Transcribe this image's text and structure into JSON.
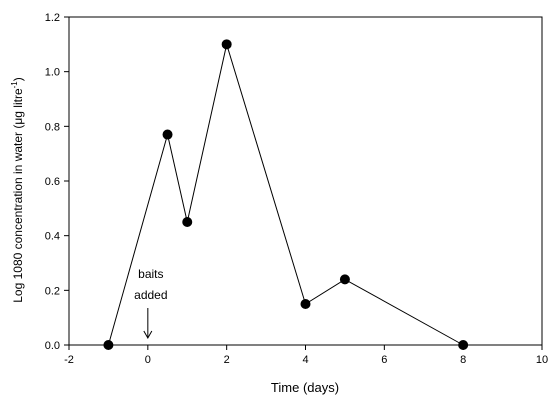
{
  "chart_data": {
    "type": "line",
    "xlabel": "Time (days)",
    "ylabel_main": "Log 1080 concentration in water (",
    "ylabel_mu": "μ",
    "ylabel_unit": "g litre",
    "ylabel_sup": "-1",
    "ylabel_close": ")",
    "xlim": [
      -2,
      10
    ],
    "ylim": [
      0,
      1.2
    ],
    "xticks": [
      -2,
      0,
      2,
      4,
      6,
      8,
      10
    ],
    "xtick_labels": [
      "-2",
      "0",
      "2",
      "4",
      "6",
      "8",
      "10"
    ],
    "yticks": [
      0,
      0.2,
      0.4,
      0.6,
      0.8,
      1.0,
      1.2
    ],
    "ytick_labels": [
      "0.0",
      "0.2",
      "0.4",
      "0.6",
      "0.8",
      "1.0",
      "1.2"
    ],
    "grid": false,
    "series": [
      {
        "marker": "filled-circle",
        "color": "#000000",
        "x": [
          -1,
          0.5,
          1,
          2,
          4,
          5,
          8
        ],
        "y": [
          0.0,
          0.77,
          0.45,
          1.1,
          0.15,
          0.24,
          0.0
        ]
      }
    ],
    "annotations": [
      {
        "line1": "baits",
        "line2": "added",
        "arrow_x": 0
      }
    ]
  }
}
